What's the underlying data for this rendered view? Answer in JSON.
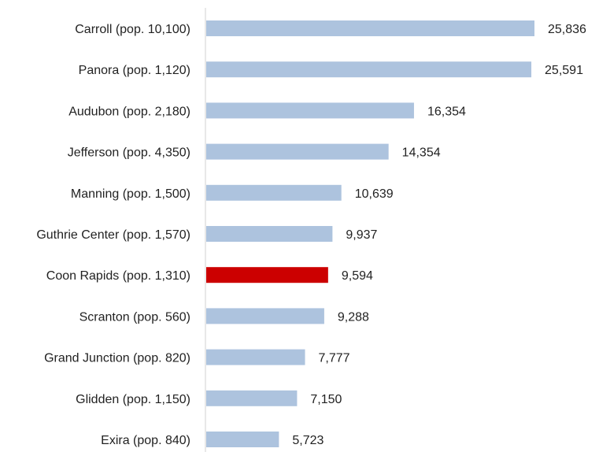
{
  "chart_data": {
    "type": "bar",
    "orientation": "horizontal",
    "categories": [
      "Carroll  (pop. 10,100)",
      "Panora  (pop. 1,120)",
      "Audubon  (pop. 2,180)",
      "Jefferson  (pop. 4,350)",
      "Manning  (pop. 1,500)",
      "Guthrie Center  (pop. 1,570)",
      "Coon Rapids  (pop. 1,310)",
      "Scranton  (pop. 560)",
      "Grand Junction  (pop. 820)",
      "Glidden  (pop. 1,150)",
      "Exira  (pop. 840)"
    ],
    "values": [
      25836,
      25591,
      16354,
      14354,
      10639,
      9937,
      9594,
      9288,
      7777,
      7150,
      5723
    ],
    "value_labels": [
      "25,836",
      "25,591",
      "16,354",
      "14,354",
      "10,639",
      "9,937",
      "9,594",
      "9,288",
      "7,777",
      "7,150",
      "5,723"
    ],
    "highlight_index": 6,
    "xlim": [
      0,
      28000
    ],
    "grid": false,
    "legend": "none",
    "title": "",
    "xlabel": "",
    "ylabel": ""
  },
  "colors": {
    "bar": "#adc3de",
    "highlight": "#cc0000",
    "axis": "#d0d0d0"
  }
}
